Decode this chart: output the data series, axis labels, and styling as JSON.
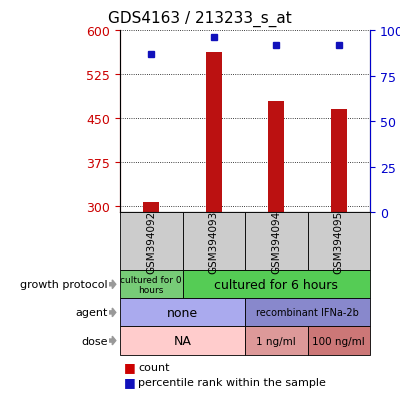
{
  "title": "GDS4163 / 213233_s_at",
  "samples": [
    "GSM394092",
    "GSM394093",
    "GSM394094",
    "GSM394095"
  ],
  "count_values": [
    307,
    563,
    480,
    465
  ],
  "percentile_values": [
    87,
    96,
    92,
    92
  ],
  "ylim_left": [
    290,
    600
  ],
  "ylim_right": [
    0,
    100
  ],
  "yticks_left": [
    300,
    375,
    450,
    525,
    600
  ],
  "yticks_right": [
    0,
    25,
    50,
    75,
    100
  ],
  "bar_color": "#bb1111",
  "dot_color": "#1111bb",
  "left_tick_color": "#cc0000",
  "right_tick_color": "#0000cc",
  "growth_color_0": "#77cc77",
  "growth_color_1": "#55cc55",
  "agent_color_0": "#aaaaee",
  "agent_color_1": "#8888cc",
  "dose_color_0": "#ffcccc",
  "dose_color_1": "#dd9999",
  "dose_color_2": "#cc7777",
  "sample_bg_color": "#cccccc",
  "legend_count_color": "#cc0000",
  "legend_pct_color": "#1111bb",
  "bar_width": 0.25,
  "title_fontsize": 11,
  "tick_fontsize": 9,
  "label_fontsize": 8,
  "annotation_fontsize": 8
}
